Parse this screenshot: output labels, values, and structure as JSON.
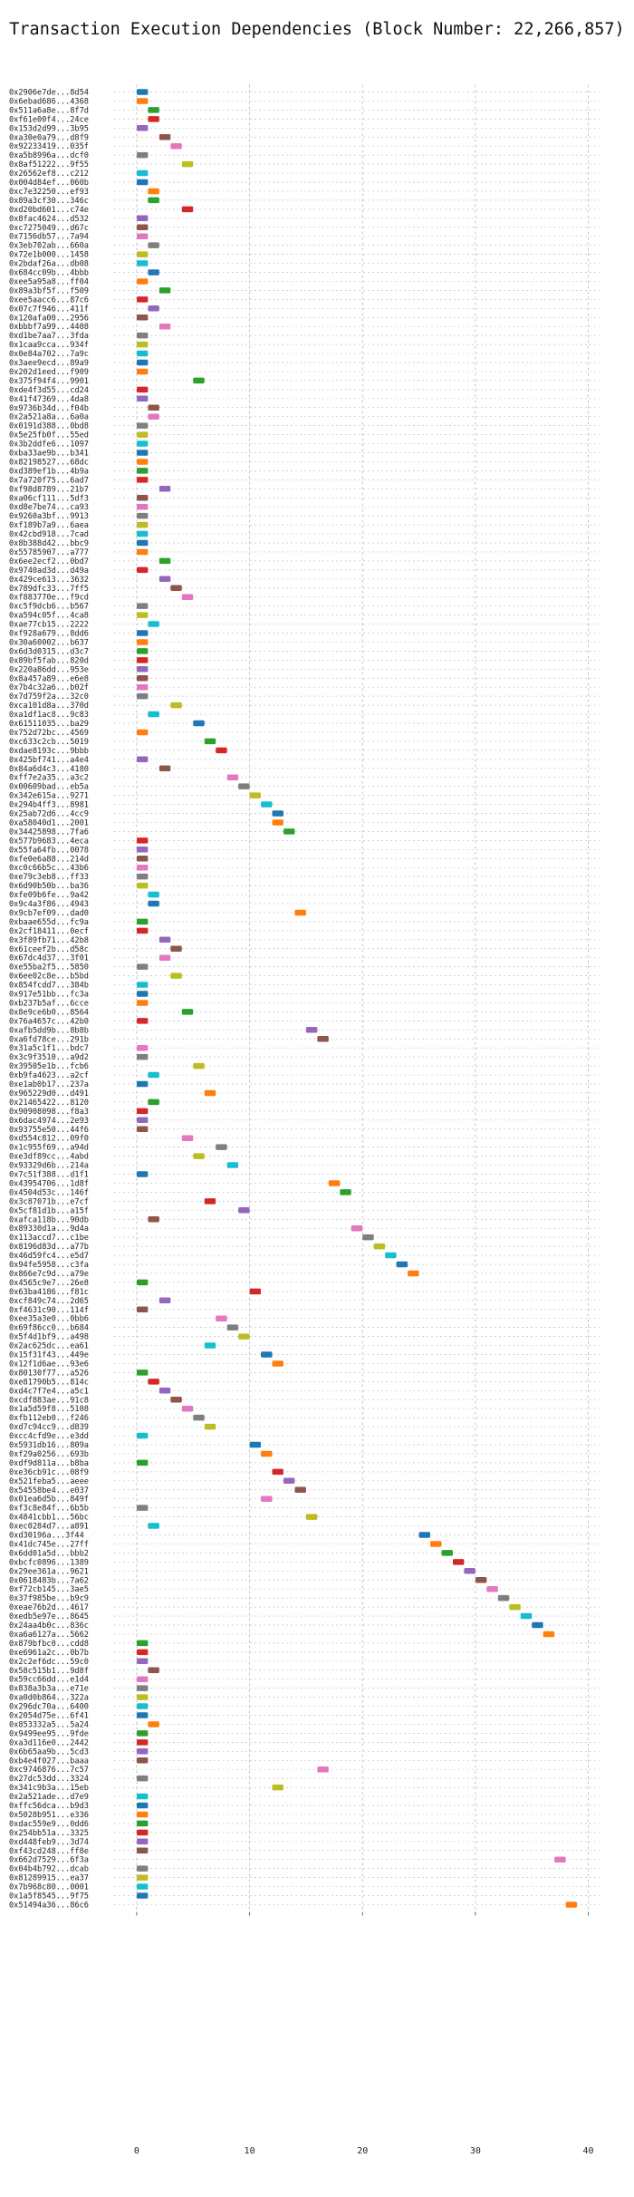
{
  "chart_data": {
    "type": "gantt",
    "title": "Transaction Execution Dependencies (Block Number: 22,266,857)",
    "xlabel": "",
    "ylabel": "",
    "xlim": [
      -2,
      41
    ],
    "xticks": [
      0,
      10,
      20,
      30,
      40
    ],
    "grid": true,
    "legend": "none",
    "bar_duration": 1,
    "colors": [
      "#1f77b4",
      "#ff7f0e",
      "#2ca02c",
      "#d62728",
      "#9467bd",
      "#8c564b",
      "#e377c2",
      "#7f7f7f",
      "#bcbd22",
      "#17becf"
    ],
    "transactions": [
      {
        "label": "0x2906e7de...8d54",
        "start": 0
      },
      {
        "label": "0x6ebad686...4368",
        "start": 0
      },
      {
        "label": "0x511a6a8e...8f7d",
        "start": 1
      },
      {
        "label": "0xf61e00f4...24ce",
        "start": 1
      },
      {
        "label": "0x153d2d99...3b95",
        "start": 0
      },
      {
        "label": "0xa30e0a79...d8f9",
        "start": 2
      },
      {
        "label": "0x92233419...035f",
        "start": 3
      },
      {
        "label": "0xa5b8996a...dcf0",
        "start": 0
      },
      {
        "label": "0x8af51222...9f55",
        "start": 4
      },
      {
        "label": "0x26562ef8...c212",
        "start": 0
      },
      {
        "label": "0x004d84ef...060b",
        "start": 0
      },
      {
        "label": "0xc7e32250...ef93",
        "start": 1
      },
      {
        "label": "0x89a3cf30...346c",
        "start": 1
      },
      {
        "label": "0xd20bd601...c74e",
        "start": 4
      },
      {
        "label": "0x8fac4624...d532",
        "start": 0
      },
      {
        "label": "0xc7275049...d67c",
        "start": 0
      },
      {
        "label": "0x7156db57...7a94",
        "start": 0
      },
      {
        "label": "0x3eb702ab...660a",
        "start": 1
      },
      {
        "label": "0x72e1b000...1458",
        "start": 0
      },
      {
        "label": "0x2bdaf26a...db08",
        "start": 0
      },
      {
        "label": "0x684cc09b...4bbb",
        "start": 1
      },
      {
        "label": "0xee5a95a8...ff04",
        "start": 0
      },
      {
        "label": "0x89a3bf5f...f509",
        "start": 2
      },
      {
        "label": "0xee5aacc6...87c6",
        "start": 0
      },
      {
        "label": "0x07c7f946...411f",
        "start": 1
      },
      {
        "label": "0x120afa00...2956",
        "start": 0
      },
      {
        "label": "0xbbbf7a99...4408",
        "start": 2
      },
      {
        "label": "0xd1be7aa7...3fda",
        "start": 0
      },
      {
        "label": "0x1caa9cca...934f",
        "start": 0
      },
      {
        "label": "0x0e84a702...7a9c",
        "start": 0
      },
      {
        "label": "0x3aee9ecd...89a9",
        "start": 0
      },
      {
        "label": "0x202d1eed...f909",
        "start": 0
      },
      {
        "label": "0x375f94f4...9901",
        "start": 5
      },
      {
        "label": "0xde4f3d55...cd24",
        "start": 0
      },
      {
        "label": "0x41f47369...4da8",
        "start": 0
      },
      {
        "label": "0x9736b34d...f04b",
        "start": 1
      },
      {
        "label": "0x2a521a8a...6a0a",
        "start": 1
      },
      {
        "label": "0x0191d388...0bd8",
        "start": 0
      },
      {
        "label": "0x5e25fb0f...55ed",
        "start": 0
      },
      {
        "label": "0x3b2ddfe6...1097",
        "start": 0
      },
      {
        "label": "0xba33ae9b...b341",
        "start": 0
      },
      {
        "label": "0x82198527...68dc",
        "start": 0
      },
      {
        "label": "0xd389ef1b...4b9a",
        "start": 0
      },
      {
        "label": "0x7a720f75...6ad7",
        "start": 0
      },
      {
        "label": "0xf98d8789...21b7",
        "start": 2
      },
      {
        "label": "0xa06cf111...5df3",
        "start": 0
      },
      {
        "label": "0xd8e7be74...ca93",
        "start": 0
      },
      {
        "label": "0x9260a3bf...9913",
        "start": 0
      },
      {
        "label": "0xf189b7a9...6aea",
        "start": 0
      },
      {
        "label": "0x42cbd918...7cad",
        "start": 0
      },
      {
        "label": "0x8b388d42...bbc9",
        "start": 0
      },
      {
        "label": "0x55785907...a777",
        "start": 0
      },
      {
        "label": "0x6ee2ecf2...0bd7",
        "start": 2
      },
      {
        "label": "0x9740ad3d...d49a",
        "start": 0
      },
      {
        "label": "0x429ce613...3632",
        "start": 2
      },
      {
        "label": "0x789dfc33...7ff5",
        "start": 3
      },
      {
        "label": "0xf883770e...f9cd",
        "start": 4
      },
      {
        "label": "0xc5f9dcb6...b567",
        "start": 0
      },
      {
        "label": "0xa594c05f...4ca8",
        "start": 0
      },
      {
        "label": "0xae77cb15...2222",
        "start": 1
      },
      {
        "label": "0xf928a679...8dd6",
        "start": 0
      },
      {
        "label": "0x30a60002...b637",
        "start": 0
      },
      {
        "label": "0x6d3d0315...d3c7",
        "start": 0
      },
      {
        "label": "0x89bf5fab...820d",
        "start": 0
      },
      {
        "label": "0x220a86dd...953e",
        "start": 0
      },
      {
        "label": "0x8a457a89...e6e8",
        "start": 0
      },
      {
        "label": "0x7b4c32a6...b02f",
        "start": 0
      },
      {
        "label": "0x7d759f2a...32c0",
        "start": 0
      },
      {
        "label": "0xca101d8a...370d",
        "start": 3
      },
      {
        "label": "0xa1df1ac8...9c83",
        "start": 1
      },
      {
        "label": "0x61511035...ba29",
        "start": 5
      },
      {
        "label": "0x752d72bc...4569",
        "start": 0
      },
      {
        "label": "0xc633c2cb...5019",
        "start": 6
      },
      {
        "label": "0xdae8193c...9bbb",
        "start": 7
      },
      {
        "label": "0x425bf741...a4e4",
        "start": 0
      },
      {
        "label": "0x84a6d4c3...4180",
        "start": 2
      },
      {
        "label": "0xff7e2a35...a3c2",
        "start": 8
      },
      {
        "label": "0x00609bad...eb5a",
        "start": 9
      },
      {
        "label": "0x342e615a...9271",
        "start": 10
      },
      {
        "label": "0x294b4ff3...8981",
        "start": 11
      },
      {
        "label": "0x25ab72d6...4cc9",
        "start": 12
      },
      {
        "label": "0xa58040d1...2001",
        "start": 12
      },
      {
        "label": "0x34425898...7fa6",
        "start": 13
      },
      {
        "label": "0x577b9683...4eca",
        "start": 0
      },
      {
        "label": "0x55fa64fb...0078",
        "start": 0
      },
      {
        "label": "0xfe0e6a88...214d",
        "start": 0
      },
      {
        "label": "0xc0c66b5c...43b6",
        "start": 0
      },
      {
        "label": "0xe79c3eb8...ff33",
        "start": 0
      },
      {
        "label": "0x6d90b50b...ba36",
        "start": 0
      },
      {
        "label": "0xfe09b6fe...9a42",
        "start": 1
      },
      {
        "label": "0x9c4a3f86...4943",
        "start": 1
      },
      {
        "label": "0x9cb7ef09...dad0",
        "start": 14
      },
      {
        "label": "0xbaae655d...fc9a",
        "start": 0
      },
      {
        "label": "0x2cf18411...0ecf",
        "start": 0
      },
      {
        "label": "0x3f89fb71...42b8",
        "start": 2
      },
      {
        "label": "0x61ceef2b...d58c",
        "start": 3
      },
      {
        "label": "0x67dc4d37...3f01",
        "start": 2
      },
      {
        "label": "0xe55ba2f5...5850",
        "start": 0
      },
      {
        "label": "0x6ee02c8e...b5bd",
        "start": 3
      },
      {
        "label": "0x854fcdd7...384b",
        "start": 0
      },
      {
        "label": "0x917e51bb...fc3a",
        "start": 0
      },
      {
        "label": "0xb237b5af...6cce",
        "start": 0
      },
      {
        "label": "0x8e9ce6b0...8564",
        "start": 4
      },
      {
        "label": "0x76a4657c...42b0",
        "start": 0
      },
      {
        "label": "0xafb5dd9b...8b8b",
        "start": 15
      },
      {
        "label": "0xa6fd78ce...291b",
        "start": 16
      },
      {
        "label": "0x31a5c1f1...bdc7",
        "start": 0
      },
      {
        "label": "0x3c9f3510...a9d2",
        "start": 0
      },
      {
        "label": "0x39505e1b...fcb6",
        "start": 5
      },
      {
        "label": "0xb9fa4623...a2cf",
        "start": 1
      },
      {
        "label": "0xe1ab0b17...237a",
        "start": 0
      },
      {
        "label": "0x965229d0...d491",
        "start": 6
      },
      {
        "label": "0x21465422...8120",
        "start": 1
      },
      {
        "label": "0x90908098...f8a3",
        "start": 0
      },
      {
        "label": "0x6dac4974...2e93",
        "start": 0
      },
      {
        "label": "0x93755e50...44f6",
        "start": 0
      },
      {
        "label": "0xd554c812...09f0",
        "start": 4
      },
      {
        "label": "0x1c955f69...a94d",
        "start": 7
      },
      {
        "label": "0xe3df89cc...4abd",
        "start": 5
      },
      {
        "label": "0x93329d6b...214a",
        "start": 8
      },
      {
        "label": "0x7c51f388...d1f1",
        "start": 0
      },
      {
        "label": "0x43954706...1d8f",
        "start": 17
      },
      {
        "label": "0x4504d53c...146f",
        "start": 18
      },
      {
        "label": "0x3c87071b...e7cf",
        "start": 6
      },
      {
        "label": "0x5cf81d1b...a15f",
        "start": 9
      },
      {
        "label": "0xafca118b...90db",
        "start": 1
      },
      {
        "label": "0x89330d1a...9d4a",
        "start": 19
      },
      {
        "label": "0x113accd7...c1be",
        "start": 20
      },
      {
        "label": "0x8196d83d...a77b",
        "start": 21
      },
      {
        "label": "0x46d59fc4...e5d7",
        "start": 22
      },
      {
        "label": "0x94fe5958...c3fa",
        "start": 23
      },
      {
        "label": "0x866e7c9d...a79e",
        "start": 24
      },
      {
        "label": "0x4565c9e7...26e8",
        "start": 0
      },
      {
        "label": "0x63ba4186...f81c",
        "start": 10
      },
      {
        "label": "0xcf849c74...2d65",
        "start": 2
      },
      {
        "label": "0xf4631c90...114f",
        "start": 0
      },
      {
        "label": "0xee35a3e0...0bb6",
        "start": 7
      },
      {
        "label": "0x69f86cc0...b684",
        "start": 8
      },
      {
        "label": "0x5f4d1bf9...a498",
        "start": 9
      },
      {
        "label": "0x2ac625dc...ea61",
        "start": 6
      },
      {
        "label": "0x15f31f43...449e",
        "start": 11
      },
      {
        "label": "0x12f1d6ae...93e6",
        "start": 12
      },
      {
        "label": "0x80130f77...a526",
        "start": 0
      },
      {
        "label": "0xe81790b5...814c",
        "start": 1
      },
      {
        "label": "0xd4c7f7e4...a5c1",
        "start": 2
      },
      {
        "label": "0xcdf883ae...91c8",
        "start": 3
      },
      {
        "label": "0x1a5d59f8...5108",
        "start": 4
      },
      {
        "label": "0xfb112eb0...f246",
        "start": 5
      },
      {
        "label": "0xd7c94cc9...d839",
        "start": 6
      },
      {
        "label": "0xcc4cfd9e...e3dd",
        "start": 0
      },
      {
        "label": "0x5931db16...809a",
        "start": 10
      },
      {
        "label": "0xf29a0256...693b",
        "start": 11
      },
      {
        "label": "0xdf9d811a...b8ba",
        "start": 0
      },
      {
        "label": "0xe36cb91c...08f9",
        "start": 12
      },
      {
        "label": "0x521feba5...aeee",
        "start": 13
      },
      {
        "label": "0x54558be4...e037",
        "start": 14
      },
      {
        "label": "0x01ea6d5b...849f",
        "start": 11
      },
      {
        "label": "0xf3c8e84f...6b5b",
        "start": 0
      },
      {
        "label": "0x4841cbb1...56bc",
        "start": 15
      },
      {
        "label": "0xec0284d7...a891",
        "start": 1
      },
      {
        "label": "0xd30196a...3f44",
        "start": 25
      },
      {
        "label": "0x41dc745e...27ff",
        "start": 26
      },
      {
        "label": "0x6dd01a5d...bbb2",
        "start": 27
      },
      {
        "label": "0xbcfc0896...1389",
        "start": 28
      },
      {
        "label": "0x29ee361a...9621",
        "start": 29
      },
      {
        "label": "0x0618483b...7a62",
        "start": 30
      },
      {
        "label": "0xf72cb145...3ae5",
        "start": 31
      },
      {
        "label": "0x37f985be...b9c9",
        "start": 32
      },
      {
        "label": "0xeae76b2d...4617",
        "start": 33
      },
      {
        "label": "0xedb5e97e...8645",
        "start": 34
      },
      {
        "label": "0x24aa4b0c...836c",
        "start": 35
      },
      {
        "label": "0xa6a6127a...5662",
        "start": 36
      },
      {
        "label": "0x879bfbc0...cdd8",
        "start": 0
      },
      {
        "label": "0xe6961a2c...0b7b",
        "start": 0
      },
      {
        "label": "0x2c2ef6dc...59c0",
        "start": 0
      },
      {
        "label": "0x58c515b1...9d8f",
        "start": 1
      },
      {
        "label": "0x59cc66dd...e1d4",
        "start": 0
      },
      {
        "label": "0x838a3b3a...e71e",
        "start": 0
      },
      {
        "label": "0xa0d0b864...322a",
        "start": 0
      },
      {
        "label": "0x296dc70a...6400",
        "start": 0
      },
      {
        "label": "0x2054d75e...6f41",
        "start": 0
      },
      {
        "label": "0x853332a5...5a24",
        "start": 1
      },
      {
        "label": "0x9499ee95...9fde",
        "start": 0
      },
      {
        "label": "0xa3d116e0...2442",
        "start": 0
      },
      {
        "label": "0x6b65aa9b...5cd3",
        "start": 0
      },
      {
        "label": "0xb4e4f027...baaa",
        "start": 0
      },
      {
        "label": "0xc9746876...7c57",
        "start": 16
      },
      {
        "label": "0x27dc53dd...3324",
        "start": 0
      },
      {
        "label": "0x341c9b3a...15eb",
        "start": 12
      },
      {
        "label": "0x2a521ade...d7e9",
        "start": 0
      },
      {
        "label": "0xffc56dca...b9d3",
        "start": 0
      },
      {
        "label": "0x5028b951...e336",
        "start": 0
      },
      {
        "label": "0xdac559e9...0dd6",
        "start": 0
      },
      {
        "label": "0x254bb51a...3325",
        "start": 0
      },
      {
        "label": "0xd448feb9...3d74",
        "start": 0
      },
      {
        "label": "0xf43cd248...ff8e",
        "start": 0
      },
      {
        "label": "0x662d7529...6f3a",
        "start": 37
      },
      {
        "label": "0x04b4b792...dcab",
        "start": 0
      },
      {
        "label": "0x81289915...ea37",
        "start": 0
      },
      {
        "label": "0x7b968c80...0001",
        "start": 0
      },
      {
        "label": "0x1a5f8545...9f75",
        "start": 0
      },
      {
        "label": "0x51494a36...86c6",
        "start": 38
      }
    ]
  }
}
